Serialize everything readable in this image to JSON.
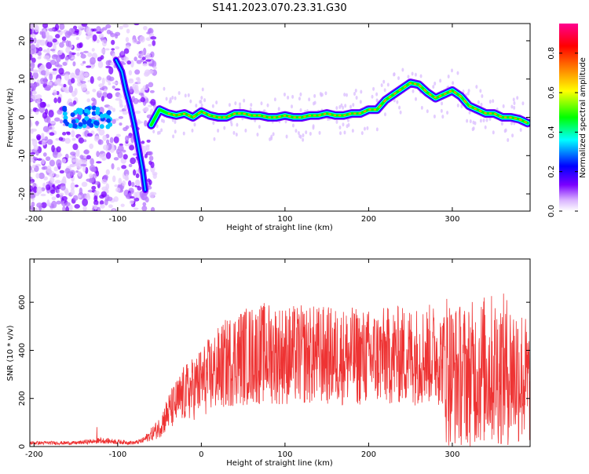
{
  "figure_title": "S141.2023.070.23.31.G30",
  "chart_data": [
    {
      "type": "heatmap",
      "xlabel": "Height of straight line (km)",
      "ylabel": "Frequency (Hz)",
      "xlim": [
        -205,
        393
      ],
      "ylim": [
        -24.5,
        24.5
      ],
      "xticks": [
        -200,
        -100,
        0,
        100,
        200,
        300
      ],
      "yticks": [
        -20,
        -10,
        0,
        10,
        20
      ],
      "colorbar": {
        "label": "Normalized spectral amplitude",
        "range": [
          0.0,
          0.95
        ],
        "ticks": [
          "0.0",
          "0.2",
          "0.4",
          "0.6",
          "0.8"
        ],
        "tick_values": [
          0.0,
          0.2,
          0.4,
          0.6,
          0.8
        ],
        "colors": [
          "#ffffff",
          "#7a00ff",
          "#0000ff",
          "#00ffff",
          "#00ff00",
          "#ffff00",
          "#ff7f00",
          "#ff0000",
          "#ff00a0"
        ]
      },
      "ridge": {
        "x": [
          -60,
          -50,
          -40,
          -30,
          -20,
          -10,
          0,
          10,
          20,
          30,
          40,
          50,
          60,
          70,
          80,
          90,
          100,
          110,
          120,
          130,
          140,
          150,
          160,
          170,
          180,
          190,
          200,
          210,
          220,
          230,
          240,
          250,
          260,
          270,
          280,
          290,
          300,
          310,
          320,
          330,
          340,
          350,
          360,
          370,
          380,
          390
        ],
        "y": [
          -2,
          2,
          1,
          0.5,
          1,
          0,
          1.5,
          0.5,
          0,
          0,
          1,
          1,
          0.5,
          0.5,
          0,
          0,
          0.5,
          0,
          0,
          0.5,
          0.5,
          1,
          0.5,
          0.5,
          1,
          1,
          2,
          2,
          4.5,
          6,
          7.5,
          9,
          8.5,
          6.5,
          5,
          6,
          7,
          5.5,
          3,
          2,
          1,
          1,
          0,
          0,
          -0.5,
          -1.5
        ]
      },
      "early_track": {
        "x": [
          -102,
          -95,
          -90,
          -85,
          -80,
          -75,
          -70,
          -67
        ],
        "y": [
          15,
          12,
          7,
          3,
          -2,
          -8,
          -14,
          -19
        ]
      }
    },
    {
      "type": "line",
      "xlabel": "Height of straight line (km)",
      "ylabel": "SNR (10 * v/v)",
      "xlim": [
        -205,
        393
      ],
      "ylim": [
        0,
        780
      ],
      "xticks": [
        -200,
        -100,
        0,
        100,
        200,
        300
      ],
      "yticks": [
        0,
        200,
        400,
        600
      ],
      "color": "#ee3333",
      "envelope_x": [
        -205,
        -150,
        -120,
        -100,
        -80,
        -70,
        -60,
        -50,
        -40,
        -30,
        -20,
        -10,
        0,
        20,
        40,
        60,
        80,
        100,
        120,
        140,
        160,
        180,
        200,
        220,
        240,
        260,
        280,
        290,
        300,
        320,
        340,
        360,
        380,
        393
      ],
      "envelope_y": [
        15,
        15,
        25,
        20,
        15,
        25,
        50,
        80,
        140,
        180,
        220,
        240,
        270,
        320,
        370,
        380,
        390,
        380,
        380,
        380,
        375,
        375,
        370,
        375,
        380,
        380,
        385,
        360,
        300,
        300,
        320,
        320,
        310,
        250
      ]
    }
  ]
}
